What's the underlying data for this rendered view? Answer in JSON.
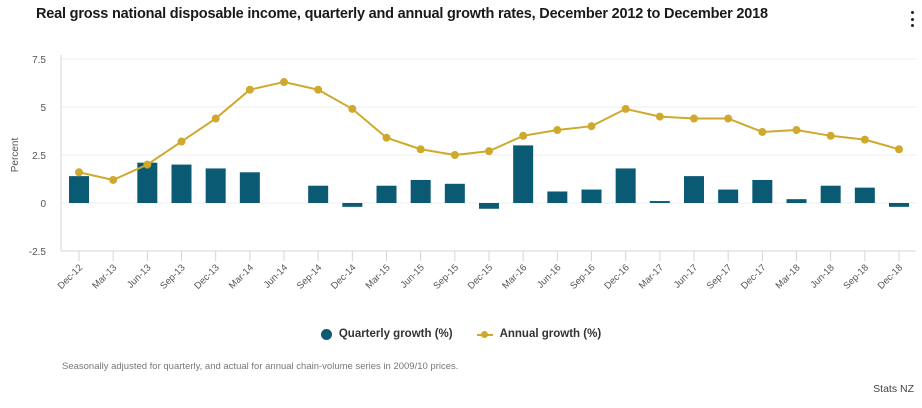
{
  "chart_data": {
    "type": "bar",
    "title": "Real gross national disposable income, quarterly and annual growth rates, December 2012 to December 2018",
    "xlabel": "",
    "ylabel": "Percent",
    "ylim": [
      -2.5,
      7.5
    ],
    "yticks": [
      7.5,
      5,
      2.5,
      0,
      -2.5
    ],
    "ytick_labels": [
      "7.5",
      "5",
      "2.5",
      "0",
      "-2.5"
    ],
    "grid": true,
    "legend_position": "bottom",
    "categories": [
      "Dec-12",
      "Mar-13",
      "Jun-13",
      "Sep-13",
      "Dec-13",
      "Mar-14",
      "Jun-14",
      "Sep-14",
      "Dec-14",
      "Mar-15",
      "Jun-15",
      "Sep-15",
      "Dec-15",
      "Mar-16",
      "Jun-16",
      "Sep-16",
      "Dec-16",
      "Mar-17",
      "Jun-17",
      "Sep-17",
      "Dec-17",
      "Mar-18",
      "Jun-18",
      "Sep-18",
      "Dec-18"
    ],
    "series": [
      {
        "name": "Quarterly growth (%)",
        "type": "bar",
        "color": "#0b5a73",
        "values": [
          1.4,
          0.0,
          2.1,
          2.0,
          1.8,
          1.6,
          0.0,
          0.9,
          -0.2,
          0.9,
          1.2,
          1.0,
          -0.3,
          3.0,
          0.6,
          0.7,
          1.8,
          0.1,
          1.4,
          0.7,
          1.2,
          0.2,
          0.9,
          0.8,
          -0.2
        ]
      },
      {
        "name": "Annual growth (%)",
        "type": "line",
        "color": "#cfa92e",
        "values": [
          1.6,
          1.2,
          2.0,
          3.2,
          4.4,
          5.9,
          6.3,
          5.9,
          4.9,
          3.4,
          2.8,
          2.5,
          2.7,
          3.5,
          3.8,
          4.0,
          4.9,
          4.5,
          4.4,
          4.4,
          3.7,
          3.8,
          3.5,
          3.3,
          2.8
        ]
      }
    ],
    "annotations": []
  },
  "legend": {
    "items": [
      "Quarterly growth (%)",
      "Annual growth (%)"
    ]
  },
  "footer": {
    "note": "Seasonally adjusted for quarterly, and actual for annual chain-volume series in 2009/10 prices.",
    "source": "Stats NZ"
  },
  "menu": {
    "icon": "kebab-menu-icon"
  }
}
